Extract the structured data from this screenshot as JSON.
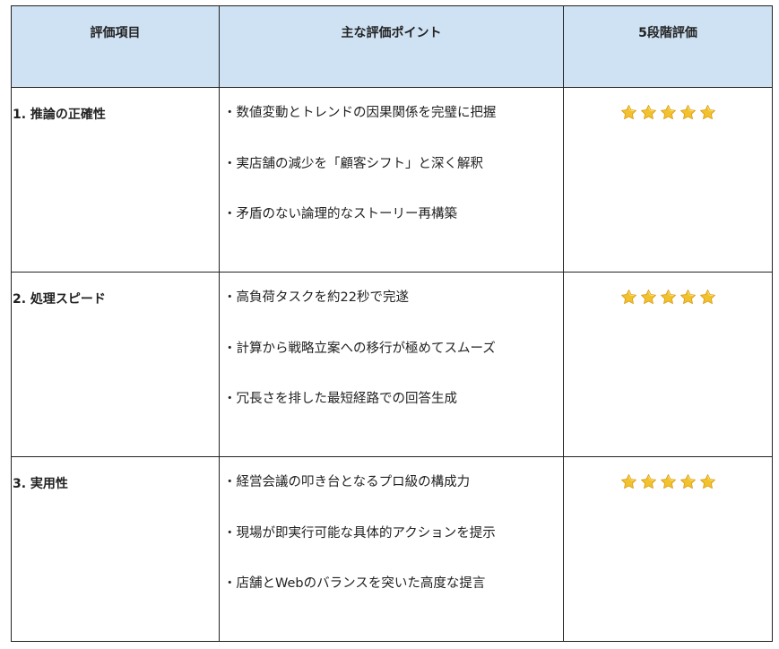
{
  "headers": [
    "評価項目",
    "主な評価ポイント",
    "5段階評価"
  ],
  "rows": [
    {
      "item": "1. 推論の正確性",
      "points": [
        "・数値変動とトレンドの因果関係を完璧に把握",
        "・実店舗の減少を「顧客シフト」と深く解釈",
        "・矛盾のない論理的なストーリー再構築"
      ],
      "rating": 5,
      "rating_max": 5
    },
    {
      "item": "2. 処理スピード",
      "points": [
        "・高負荷タスクを約22秒で完遂",
        "・計算から戦略立案への移行が極めてスムーズ",
        "・冗長さを排した最短経路での回答生成"
      ],
      "rating": 5,
      "rating_max": 5
    },
    {
      "item": "3. 実用性",
      "points": [
        "・経営会議の叩き台となるプロ級の構成力",
        "・現場が即実行可能な具体的アクションを提示",
        "・店舗とWebのバランスを突いた高度な提言"
      ],
      "rating": 5,
      "rating_max": 5
    }
  ],
  "colors": {
    "header_bg": "#cfe2f3",
    "star": "#f2c12e",
    "border": "#222222"
  },
  "icons": {
    "rating": "star-icon"
  }
}
